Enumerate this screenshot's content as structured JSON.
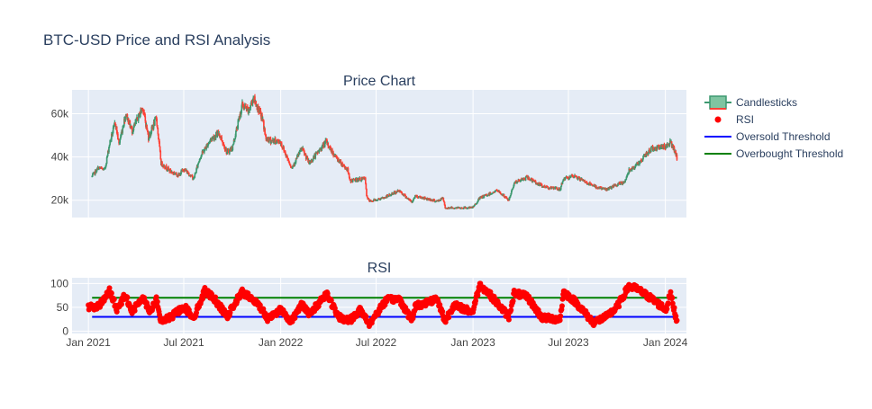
{
  "title": "BTC-USD Price and RSI Analysis",
  "colors": {
    "plot_bg": "#e5ecf6",
    "grid": "#ffffff",
    "text": "#444444",
    "title": "#2a3f5f",
    "increasing": "#3d9970",
    "increasing_fill": "#7fc5a1",
    "decreasing": "#ff4136",
    "decreasing_fill": "#f59a94",
    "rsi": "#ff0000",
    "oversold": "#0000ff",
    "overbought": "#008000"
  },
  "legend": {
    "placement": "top-right",
    "entries": [
      "Candlesticks",
      "RSI",
      "Oversold Threshold",
      "Overbought Threshold"
    ]
  },
  "chart_data": [
    {
      "type": "candlestick",
      "title": "Price Chart",
      "ylim": [
        12000,
        71000
      ],
      "yticks": [
        20000,
        40000,
        60000
      ],
      "yticklabels": [
        "20k",
        "40k",
        "60k"
      ],
      "xlim": [
        "2020-12-01",
        "2024-02-10"
      ],
      "xticks": [
        "2021-01-01",
        "2021-07-01",
        "2022-01-01",
        "2022-07-01",
        "2023-01-01",
        "2023-07-01",
        "2024-01-01"
      ],
      "grid": true,
      "price_keyframes": [
        [
          "2021-01-08",
          31000
        ],
        [
          "2021-01-20",
          35000
        ],
        [
          "2021-02-01",
          34000
        ],
        [
          "2021-02-10",
          46000
        ],
        [
          "2021-02-21",
          56000
        ],
        [
          "2021-02-28",
          46000
        ],
        [
          "2021-03-13",
          60000
        ],
        [
          "2021-03-25",
          52000
        ],
        [
          "2021-04-14",
          63000
        ],
        [
          "2021-04-25",
          49000
        ],
        [
          "2021-05-10",
          58000
        ],
        [
          "2021-05-19",
          37000
        ],
        [
          "2021-06-08",
          33000
        ],
        [
          "2021-06-22",
          31500
        ],
        [
          "2021-07-01",
          34500
        ],
        [
          "2021-07-20",
          30000
        ],
        [
          "2021-08-01",
          40000
        ],
        [
          "2021-08-22",
          48500
        ],
        [
          "2021-09-06",
          51000
        ],
        [
          "2021-09-21",
          42000
        ],
        [
          "2021-10-01",
          44000
        ],
        [
          "2021-10-20",
          64000
        ],
        [
          "2021-11-01",
          61000
        ],
        [
          "2021-11-10",
          67500
        ],
        [
          "2021-11-28",
          57000
        ],
        [
          "2021-12-04",
          48000
        ],
        [
          "2021-12-31",
          47000
        ],
        [
          "2022-01-22",
          35000
        ],
        [
          "2022-02-10",
          44000
        ],
        [
          "2022-02-24",
          37000
        ],
        [
          "2022-03-28",
          47000
        ],
        [
          "2022-04-15",
          40000
        ],
        [
          "2022-05-08",
          34000
        ],
        [
          "2022-05-12",
          29000
        ],
        [
          "2022-06-10",
          30000
        ],
        [
          "2022-06-13",
          22000
        ],
        [
          "2022-06-18",
          19500
        ],
        [
          "2022-07-15",
          21000
        ],
        [
          "2022-08-14",
          24500
        ],
        [
          "2022-09-07",
          19000
        ],
        [
          "2022-09-13",
          22000
        ],
        [
          "2022-10-25",
          19500
        ],
        [
          "2022-11-05",
          21000
        ],
        [
          "2022-11-09",
          16500
        ],
        [
          "2022-12-31",
          16500
        ],
        [
          "2023-01-14",
          21000
        ],
        [
          "2023-02-16",
          24500
        ],
        [
          "2023-03-10",
          20000
        ],
        [
          "2023-03-20",
          28000
        ],
        [
          "2023-04-14",
          30500
        ],
        [
          "2023-05-12",
          26500
        ],
        [
          "2023-06-15",
          25000
        ],
        [
          "2023-06-22",
          30000
        ],
        [
          "2023-07-14",
          31000
        ],
        [
          "2023-08-17",
          26500
        ],
        [
          "2023-09-11",
          25000
        ],
        [
          "2023-10-16",
          28500
        ],
        [
          "2023-10-24",
          34000
        ],
        [
          "2023-11-09",
          36500
        ],
        [
          "2023-12-06",
          44000
        ],
        [
          "2024-01-02",
          45000
        ],
        [
          "2024-01-11",
          47000
        ],
        [
          "2024-01-23",
          39500
        ]
      ]
    },
    {
      "type": "scatter",
      "title": "RSI",
      "ylim": [
        -5,
        112
      ],
      "yticks": [
        0,
        50,
        100
      ],
      "yticklabels": [
        "0",
        "50",
        "100"
      ],
      "xlim": [
        "2020-12-01",
        "2024-02-10"
      ],
      "xticks": [
        "2021-01-01",
        "2021-07-01",
        "2022-01-01",
        "2022-07-01",
        "2023-01-01",
        "2023-07-01",
        "2024-01-01"
      ],
      "xticklabels": [
        "Jan 2021",
        "Jul 2021",
        "Jan 2022",
        "Jul 2022",
        "Jan 2023",
        "Jul 2023",
        "Jan 2024"
      ],
      "grid": true,
      "rsi_keyframes": [
        [
          "2021-01-01",
          50
        ],
        [
          "2021-01-20",
          52
        ],
        [
          "2021-02-10",
          84
        ],
        [
          "2021-02-25",
          45
        ],
        [
          "2021-03-12",
          78
        ],
        [
          "2021-03-25",
          40
        ],
        [
          "2021-04-14",
          72
        ],
        [
          "2021-04-28",
          42
        ],
        [
          "2021-05-10",
          65
        ],
        [
          "2021-05-19",
          20
        ],
        [
          "2021-06-08",
          30
        ],
        [
          "2021-07-01",
          52
        ],
        [
          "2021-07-20",
          28
        ],
        [
          "2021-08-10",
          85
        ],
        [
          "2021-08-28",
          68
        ],
        [
          "2021-09-22",
          30
        ],
        [
          "2021-10-01",
          50
        ],
        [
          "2021-10-20",
          82
        ],
        [
          "2021-11-10",
          65
        ],
        [
          "2021-11-28",
          45
        ],
        [
          "2021-12-05",
          25
        ],
        [
          "2021-12-31",
          45
        ],
        [
          "2022-01-22",
          20
        ],
        [
          "2022-02-10",
          60
        ],
        [
          "2022-02-24",
          33
        ],
        [
          "2022-03-29",
          80
        ],
        [
          "2022-04-20",
          30
        ],
        [
          "2022-05-12",
          22
        ],
        [
          "2022-06-01",
          45
        ],
        [
          "2022-06-18",
          15
        ],
        [
          "2022-07-20",
          65
        ],
        [
          "2022-08-14",
          68
        ],
        [
          "2022-09-07",
          22
        ],
        [
          "2022-09-13",
          52
        ],
        [
          "2022-10-25",
          68
        ],
        [
          "2022-11-09",
          20
        ],
        [
          "2022-11-25",
          55
        ],
        [
          "2022-12-31",
          40
        ],
        [
          "2023-01-14",
          98
        ],
        [
          "2023-02-01",
          78
        ],
        [
          "2023-03-10",
          30
        ],
        [
          "2023-03-20",
          80
        ],
        [
          "2023-04-14",
          72
        ],
        [
          "2023-05-12",
          28
        ],
        [
          "2023-06-15",
          25
        ],
        [
          "2023-06-22",
          82
        ],
        [
          "2023-07-14",
          62
        ],
        [
          "2023-08-17",
          18
        ],
        [
          "2023-09-11",
          30
        ],
        [
          "2023-10-01",
          50
        ],
        [
          "2023-10-24",
          95
        ],
        [
          "2023-11-09",
          88
        ],
        [
          "2023-12-06",
          68
        ],
        [
          "2024-01-02",
          45
        ],
        [
          "2024-01-11",
          78
        ],
        [
          "2024-01-23",
          20
        ]
      ],
      "oversold_threshold": 30,
      "overbought_threshold": 70,
      "threshold_range": [
        "2021-01-08",
        "2024-01-23"
      ]
    }
  ]
}
